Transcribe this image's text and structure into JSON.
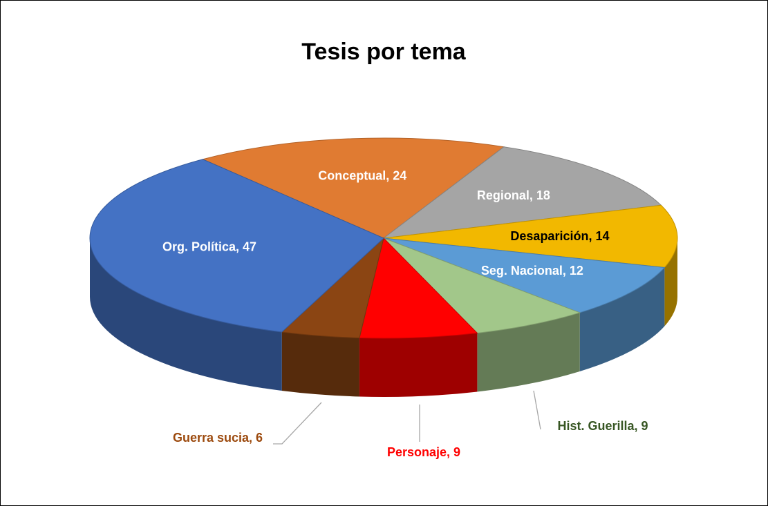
{
  "chart_data": {
    "type": "pie3d",
    "title": "Tesis por tema",
    "values": [
      24,
      18,
      14,
      12,
      9,
      9,
      6,
      47
    ],
    "value_labels": [
      "Conceptual, 24",
      "Regional, 18",
      "Desaparición, 14",
      "Seg. Nacional, 12",
      "Hist. Guerilla, 9",
      "Personaje, 9",
      "Guerra sucia, 6",
      "Org. Política, 47"
    ],
    "colors": [
      "#e07b32",
      "#a5a5a5",
      "#f2b800",
      "#5b9bd5",
      "#a2c78a",
      "#ff0000",
      "#8b4513",
      "#4472c4"
    ],
    "label_colors": [
      "#ffffff",
      "#ffffff",
      "#000000",
      "#ffffff",
      "#375623",
      "#ff0000",
      "#9c4a0e",
      "#ffffff"
    ]
  }
}
